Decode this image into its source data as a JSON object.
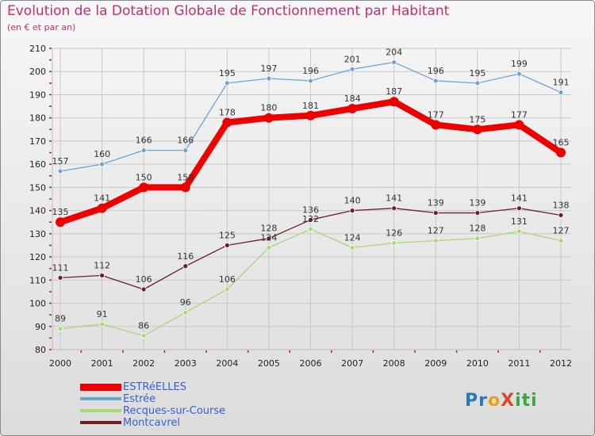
{
  "title": "Evolution de la Dotation Globale de Fonctionnement par Habitant",
  "subtitle": "(en € et par an)",
  "logo": {
    "p1": "Pr",
    "p2": "o",
    "p3": "X",
    "p4": "iti"
  },
  "chart_data": {
    "type": "line",
    "x": [
      "2000",
      "2001",
      "2002",
      "2003",
      "2004",
      "2005",
      "2006",
      "2007",
      "2008",
      "2009",
      "2010",
      "2011",
      "2012"
    ],
    "ylim": [
      80,
      210
    ],
    "yticks": [
      80,
      90,
      100,
      110,
      120,
      130,
      140,
      150,
      160,
      170,
      180,
      190,
      200,
      210
    ],
    "grid": true,
    "legend_position": "bottom-left",
    "series": [
      {
        "name": "Estrée",
        "color": "#6fa3d2",
        "values": [
          157,
          160,
          166,
          166,
          195,
          197,
          196,
          201,
          204,
          196,
          195,
          199,
          191
        ]
      },
      {
        "name": "Recques-sur-Course",
        "color": "#a8d878",
        "values": [
          89,
          91,
          86,
          96,
          106,
          124,
          132,
          124,
          126,
          127,
          128,
          131,
          127
        ]
      },
      {
        "name": "Montcavrel",
        "color": "#6e1f24",
        "values": [
          111,
          112,
          106,
          116,
          125,
          128,
          136,
          140,
          141,
          139,
          139,
          141,
          138
        ]
      },
      {
        "name": "ESTRéELLES",
        "color": "#ee0000",
        "values": [
          135,
          141,
          150,
          150,
          178,
          180,
          181,
          184,
          187,
          177,
          175,
          177,
          165
        ]
      }
    ]
  }
}
